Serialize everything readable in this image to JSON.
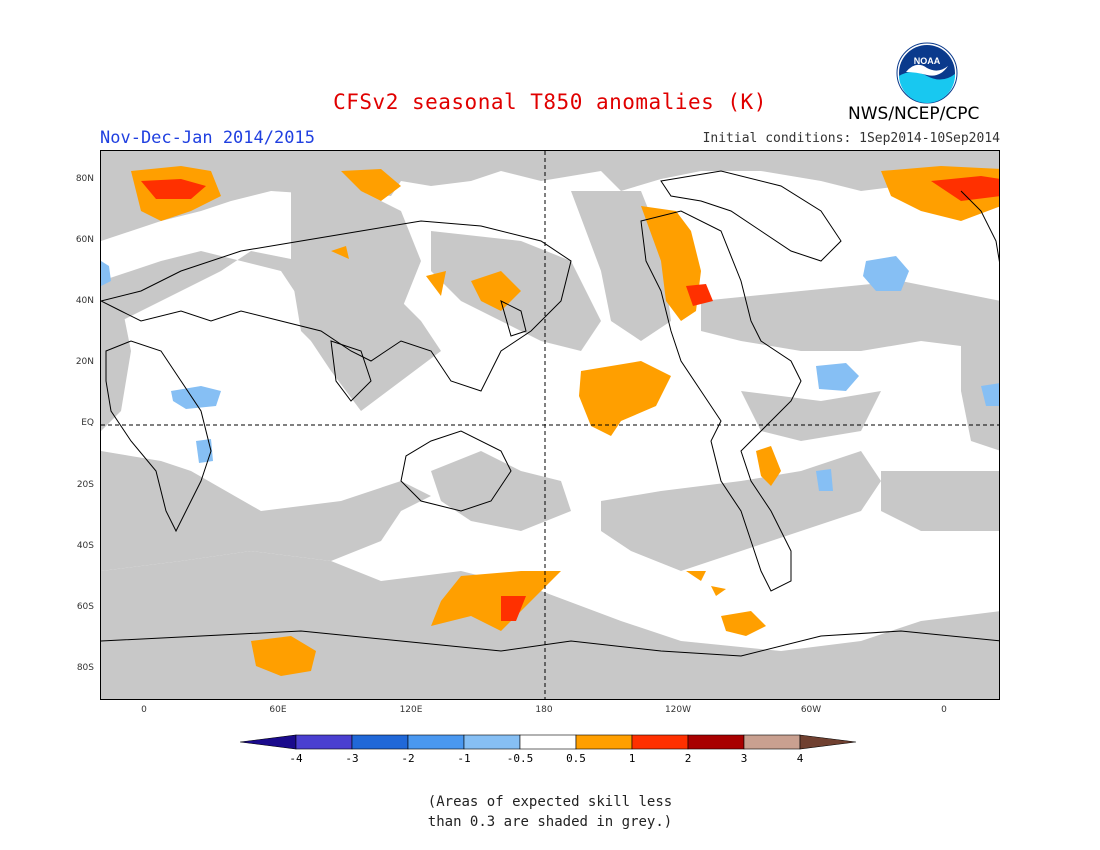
{
  "title": "CFSv2 seasonal T850 anomalies (K)",
  "agency": "NWS/NCEP/CPC",
  "logo_text": "NOAA",
  "season": "Nov-Dec-Jan 2014/2015",
  "initial_conditions": "Initial conditions: 1Sep2014-10Sep2014",
  "lat_labels": [
    "80N",
    "60N",
    "40N",
    "20N",
    "EQ",
    "20S",
    "40S",
    "60S",
    "80S"
  ],
  "lon_labels": [
    "0",
    "60E",
    "120E",
    "180",
    "120W",
    "60W",
    "0"
  ],
  "colorbar": {
    "labels": [
      "-4",
      "-3",
      "-2",
      "-1",
      "-0.5",
      "0.5",
      "1",
      "2",
      "3",
      "4"
    ],
    "colors": [
      "#1a0a8c",
      "#4a3fd0",
      "#2068d8",
      "#4a98f0",
      "#86bff4",
      "#ffffff",
      "#ff9f00",
      "#ff3000",
      "#a80000",
      "#c9a090",
      "#704030"
    ]
  },
  "note_line1": "(Areas of expected skill less",
  "note_line2": "than 0.3 are shaded in grey.)",
  "legend_colors": {
    "skill_grey": "#c8c8c8",
    "warm_1": "#ff9f00",
    "warm_2": "#ff3000",
    "cool_1": "#86bff4"
  }
}
